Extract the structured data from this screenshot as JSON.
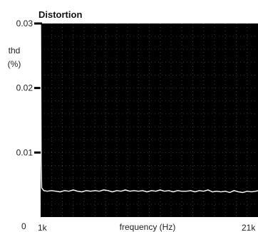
{
  "chart_data": {
    "type": "line",
    "title": "Distortion",
    "ylabel": [
      "thd",
      "(%)"
    ],
    "xlabel": "frequency (Hz)",
    "y_ticks": [
      {
        "value": 0.03,
        "label": "0.03"
      },
      {
        "value": 0.02,
        "label": "0.02"
      },
      {
        "value": 0.01,
        "label": "0.01"
      },
      {
        "value": 0,
        "label": "0"
      }
    ],
    "x_ticks": [
      {
        "value": 1000,
        "label": "1k"
      },
      {
        "value": 21000,
        "label": "21k"
      }
    ],
    "xlim": [
      1000,
      21000
    ],
    "ylim": [
      0,
      0.03
    ],
    "grid": true,
    "background": "#000000",
    "line_color": "#ffffff",
    "series": [
      {
        "x": [
          1000,
          1050,
          1100,
          1300,
          1600,
          2000,
          2400,
          2800,
          3200,
          3600,
          4000,
          4400,
          4800,
          5200,
          5600,
          6000,
          6400,
          6800,
          7200,
          7600,
          8000,
          8400,
          8800,
          9200,
          9600,
          10000,
          10400,
          10800,
          11200,
          11600,
          12000,
          12400,
          12800,
          13200,
          13600,
          14000,
          14400,
          14800,
          15200,
          15600,
          16000,
          16400,
          16800,
          17200,
          17600,
          18000,
          18400,
          18800,
          19200,
          19600,
          20000,
          20400,
          20800,
          21000
        ],
        "y": [
          0.0298,
          0.0085,
          0.0045,
          0.0041,
          0.004,
          0.0041,
          0.004,
          0.0039,
          0.0041,
          0.004,
          0.0042,
          0.004,
          0.0039,
          0.0041,
          0.004,
          0.0041,
          0.004,
          0.0042,
          0.0041,
          0.0039,
          0.0041,
          0.004,
          0.0042,
          0.004,
          0.0041,
          0.004,
          0.0041,
          0.0039,
          0.0041,
          0.004,
          0.0042,
          0.004,
          0.0041,
          0.0039,
          0.0041,
          0.004,
          0.004,
          0.0041,
          0.0039,
          0.0041,
          0.004,
          0.0042,
          0.0039,
          0.004,
          0.0039,
          0.004,
          0.0038,
          0.0041,
          0.0039,
          0.0038,
          0.004,
          0.0039,
          0.004,
          0.0041
        ]
      }
    ]
  }
}
